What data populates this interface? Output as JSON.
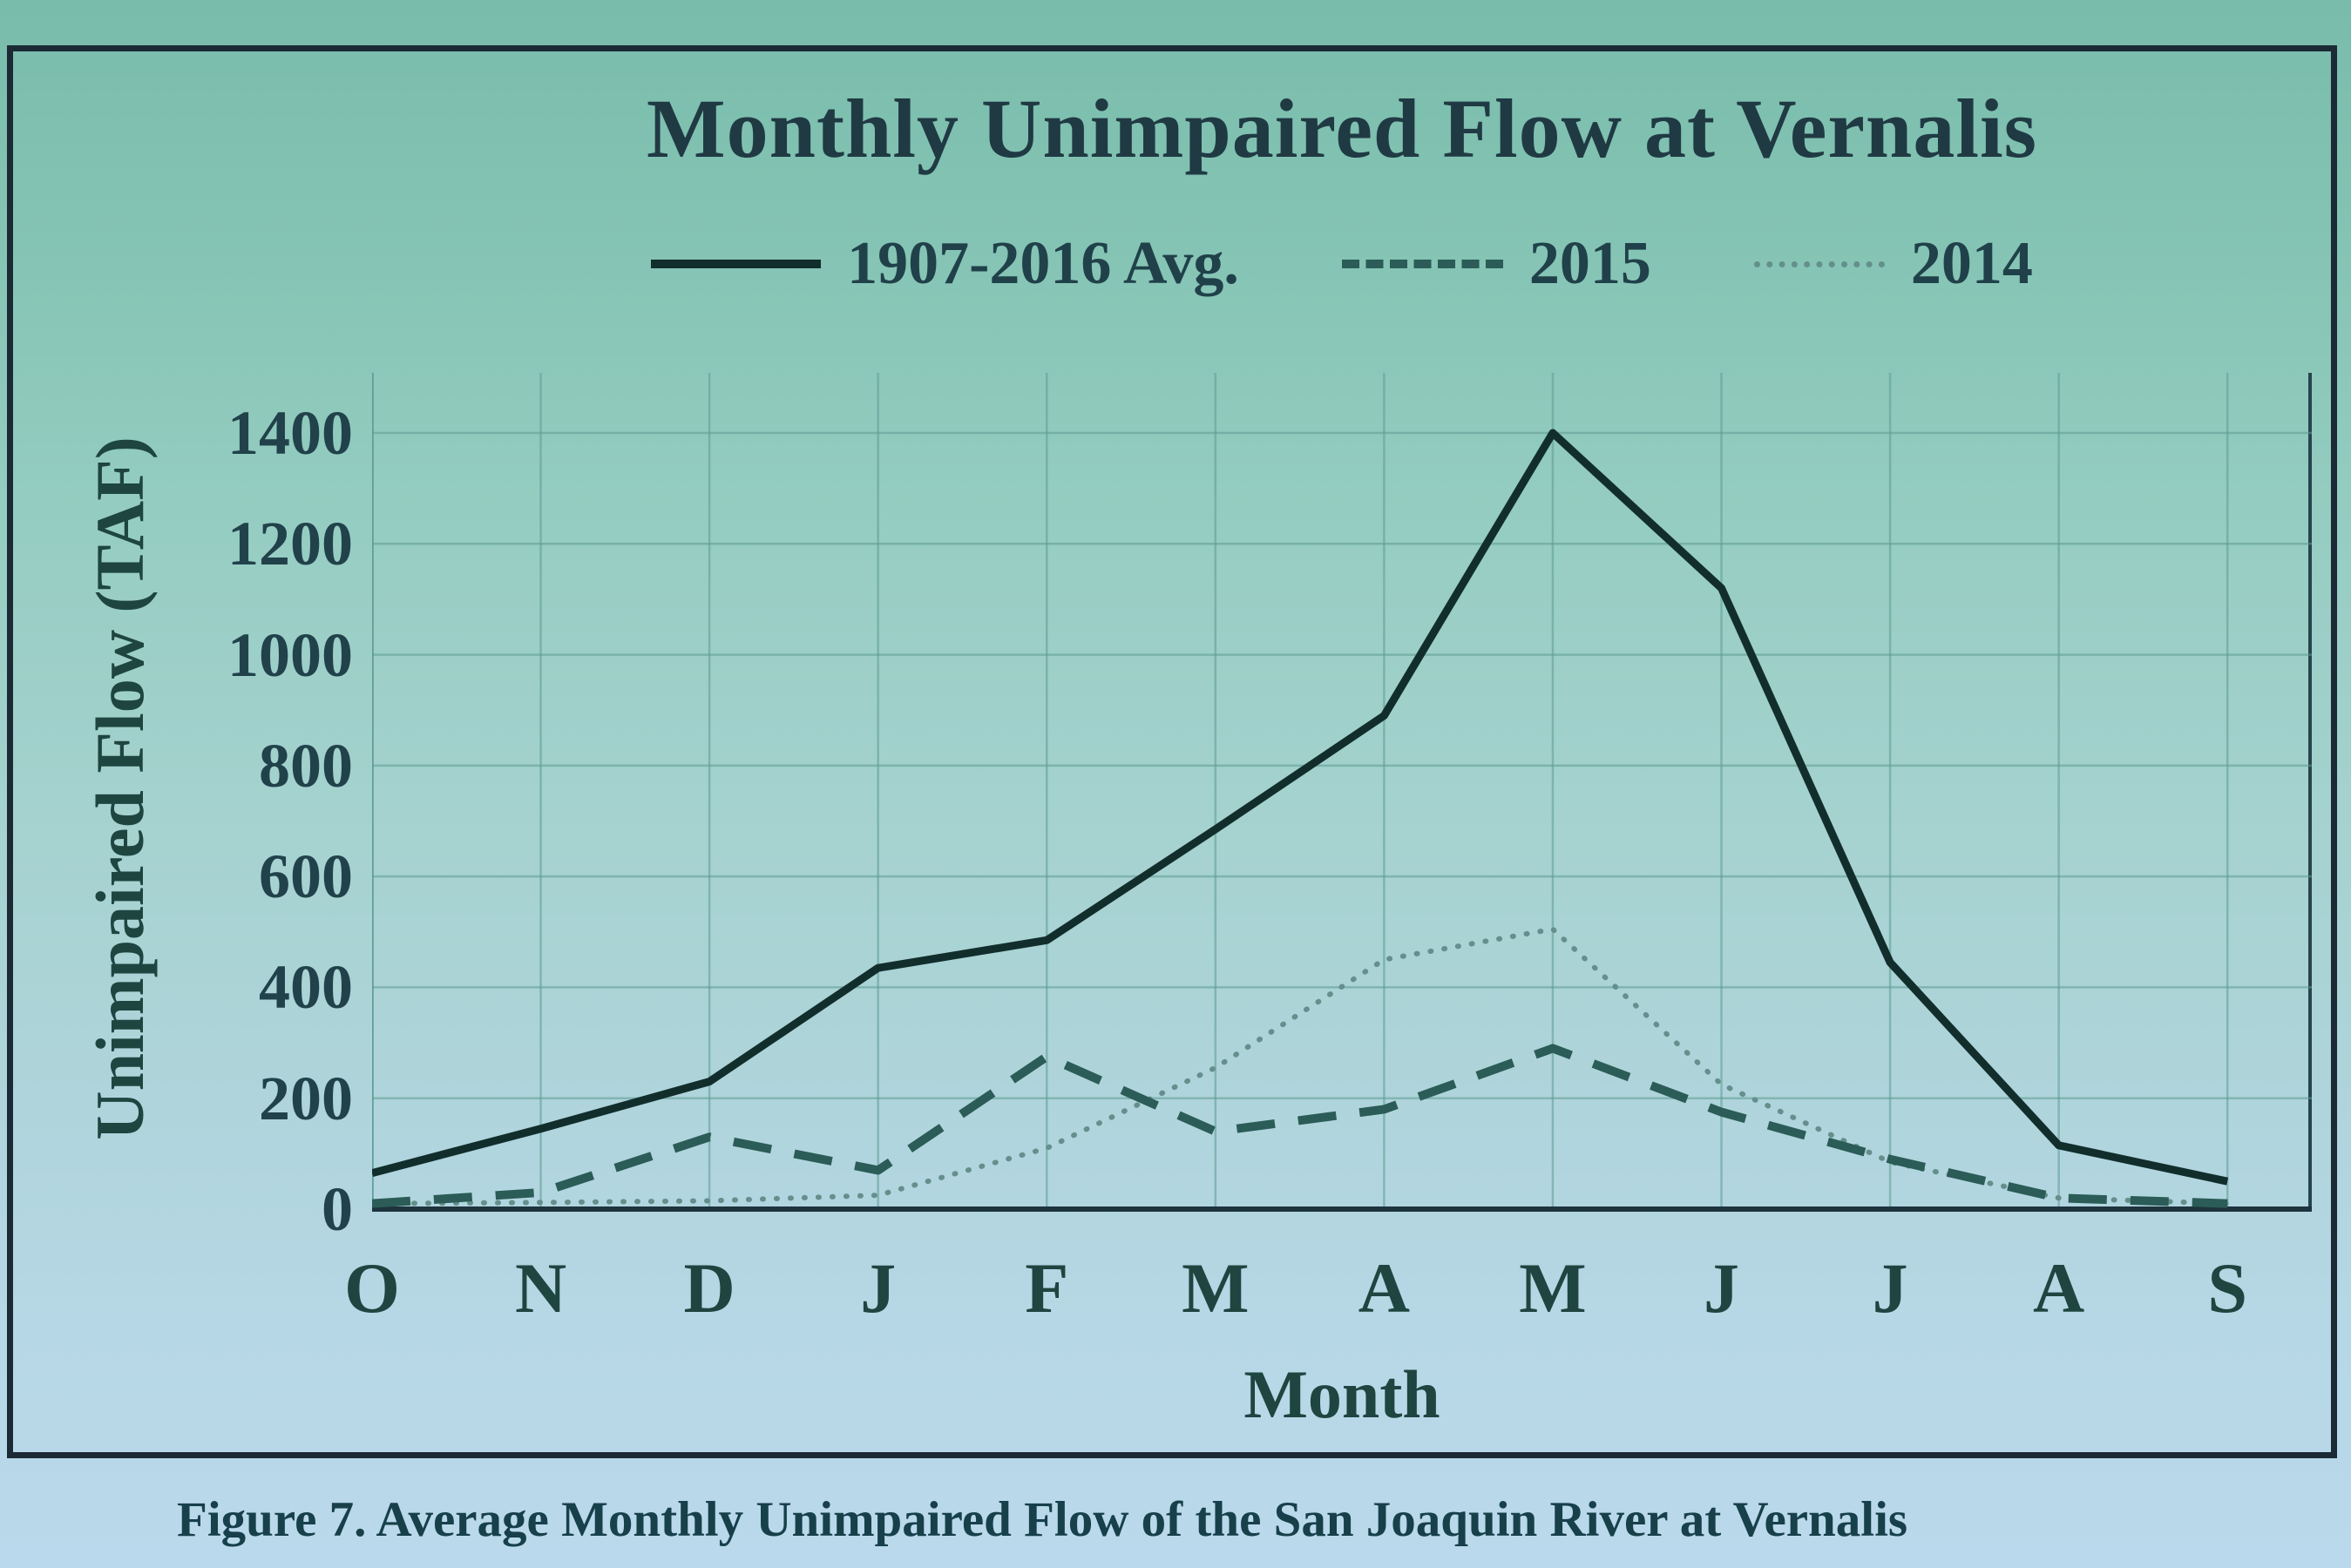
{
  "figure": {
    "title": "Monthly Unimpaired Flow at Vernalis",
    "caption": "Figure 7. Average Monthly Unimpaired Flow of the San Joaquin River at Vernalis"
  },
  "legend": [
    {
      "label": "1907-2016 Avg.",
      "style": "solid"
    },
    {
      "label": "2015",
      "style": "dashed"
    },
    {
      "label": "2014",
      "style": "dotted"
    }
  ],
  "chart_data": {
    "type": "line",
    "title": "Monthly Unimpaired Flow at Vernalis",
    "xlabel": "Month",
    "ylabel": "Unimpaired Flow (TAF)",
    "categories": [
      "O",
      "N",
      "D",
      "J",
      "F",
      "M",
      "A",
      "M",
      "J",
      "J",
      "A",
      "S"
    ],
    "ylim": [
      0,
      1400
    ],
    "yticks": [
      0,
      200,
      400,
      600,
      800,
      1000,
      1200,
      1400
    ],
    "grid": true,
    "legend_position": "top",
    "series": [
      {
        "name": "1907-2016 Avg.",
        "style": "solid",
        "values": [
          65,
          145,
          230,
          435,
          485,
          685,
          890,
          1400,
          1120,
          445,
          115,
          50
        ]
      },
      {
        "name": "2015",
        "style": "dashed",
        "values": [
          10,
          30,
          130,
          70,
          275,
          140,
          180,
          290,
          175,
          90,
          20,
          10
        ]
      },
      {
        "name": "2014",
        "style": "dotted",
        "values": [
          10,
          12,
          15,
          25,
          110,
          255,
          450,
          505,
          225,
          85,
          20,
          10
        ]
      }
    ]
  },
  "colors": {
    "background_top": "#79bcab",
    "background_bottom": "#bad9ec",
    "frame_border": "#1b2a35",
    "grid": "#5d9a92",
    "axis": "#1d333e",
    "plot_right_edge": "#27444c",
    "text": "#20414a",
    "series_solid": "#122e2c",
    "series_dashed": "#2b5c57",
    "series_dotted": "#648f8c"
  }
}
